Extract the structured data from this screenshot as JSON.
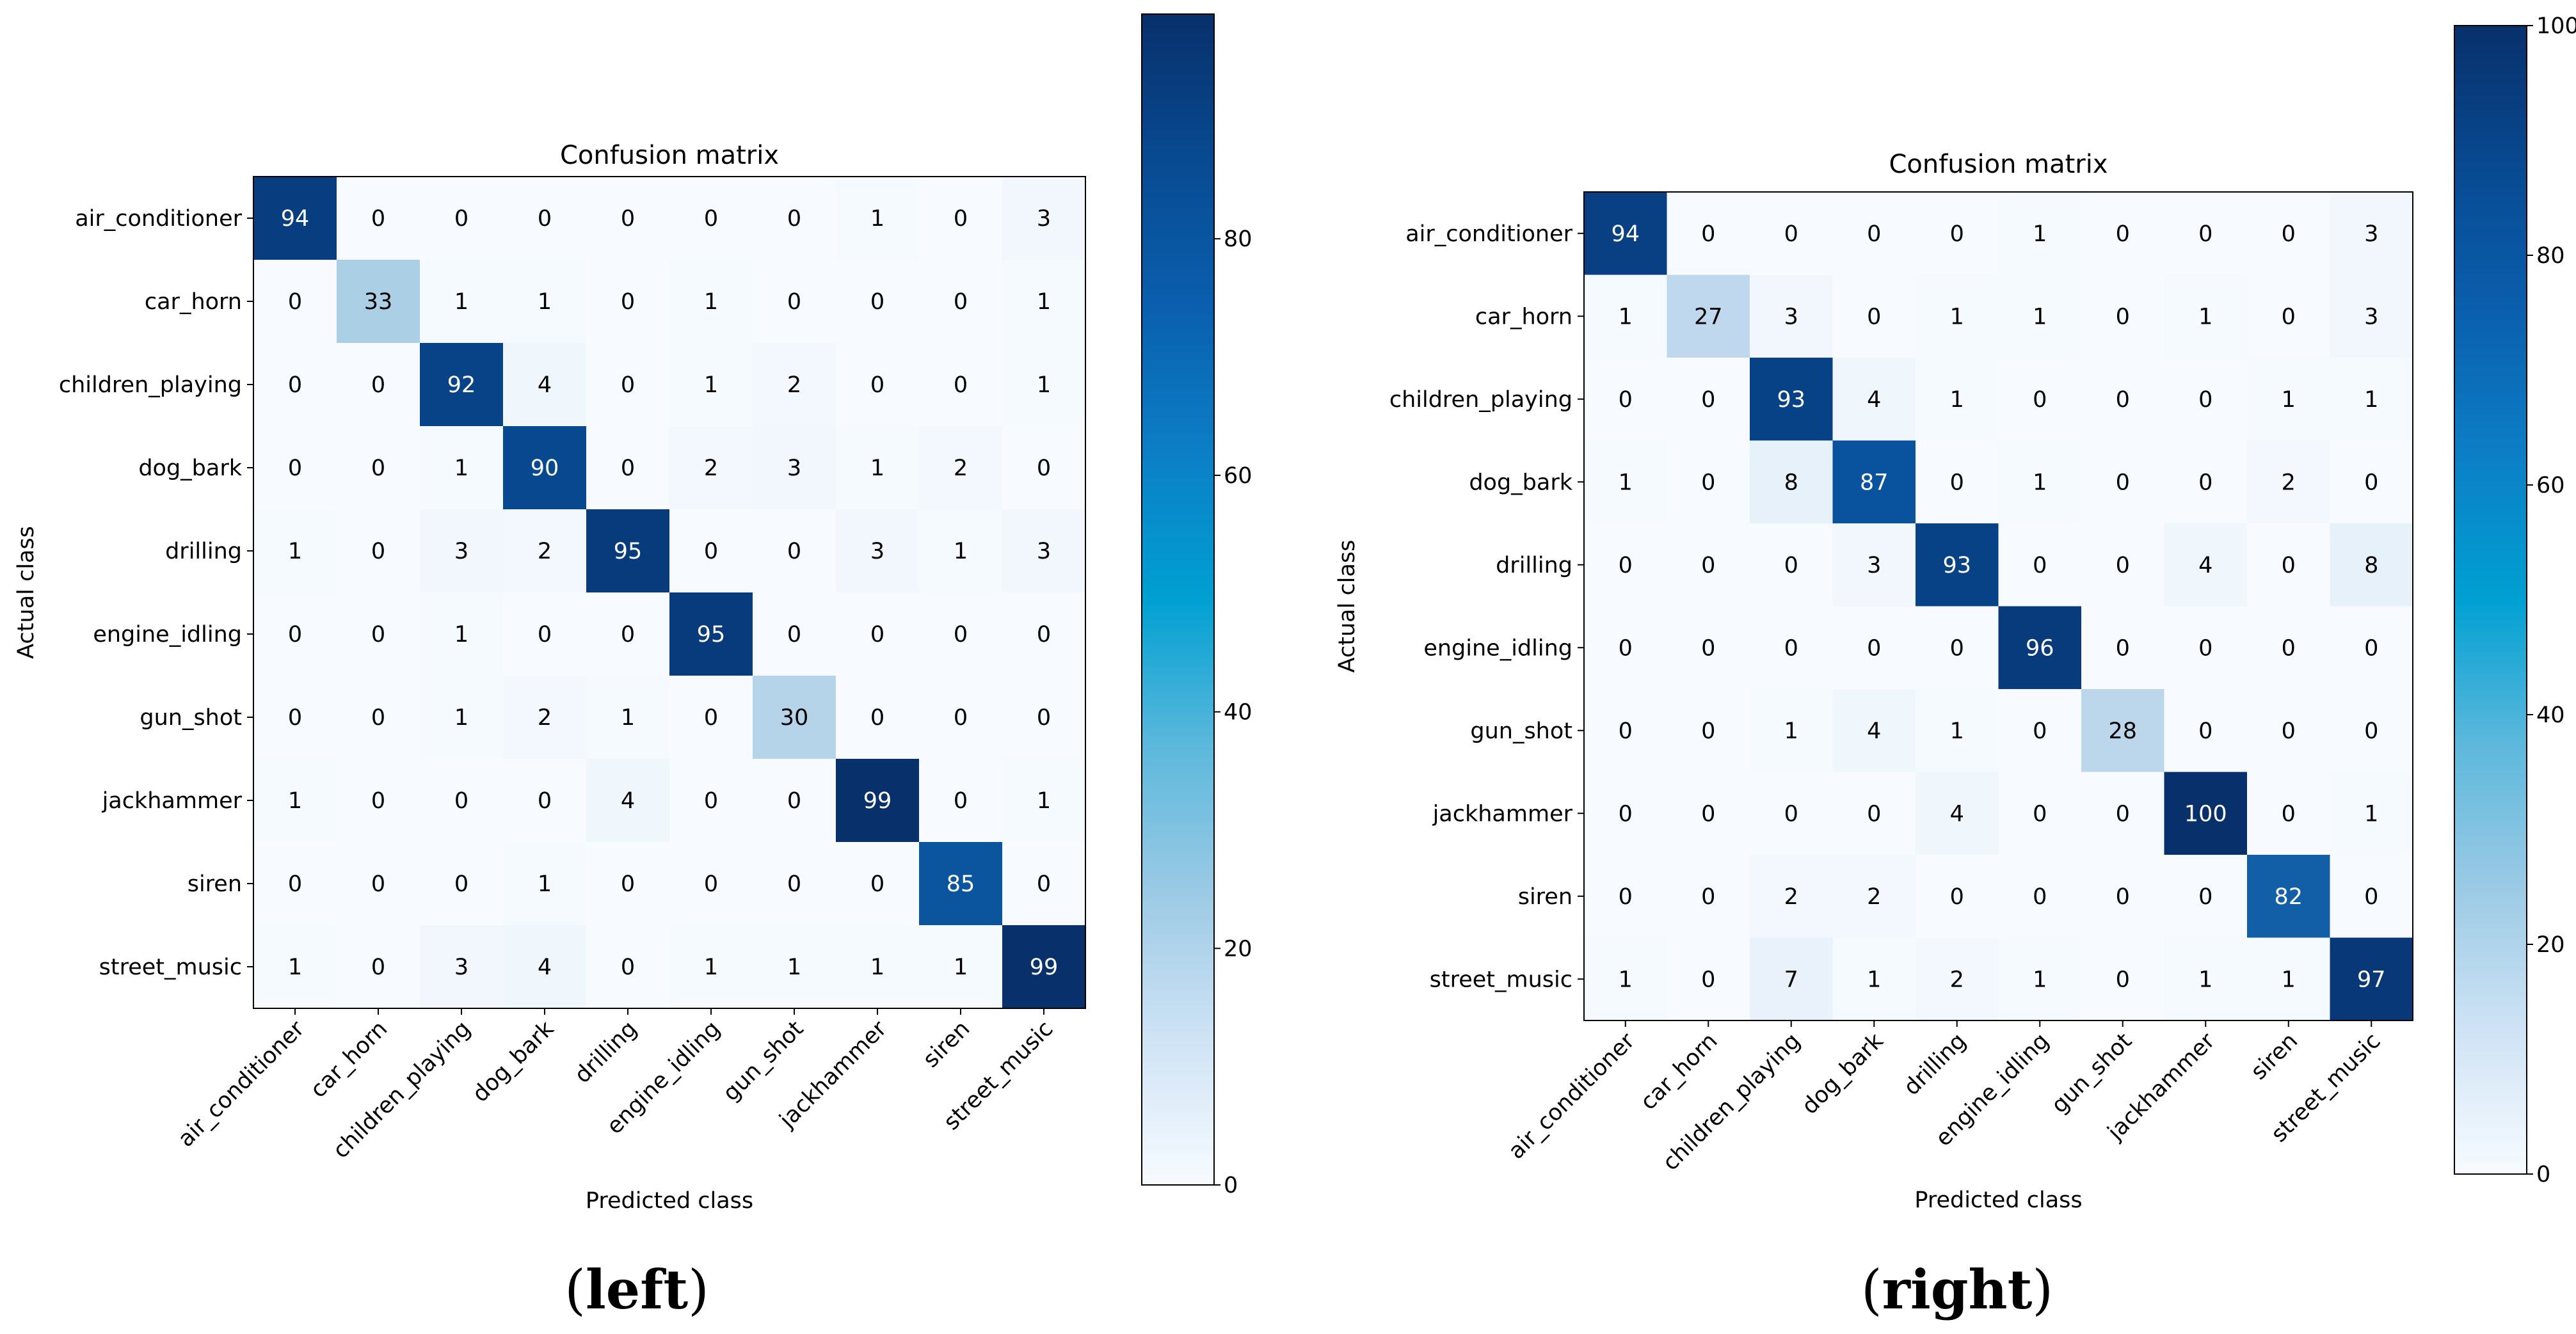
{
  "chart_data": [
    {
      "type": "heatmap",
      "title": "Confusion matrix",
      "xlabel": "Predicted class",
      "ylabel": "Actual class",
      "x_categories": [
        "air_conditioner",
        "car_horn",
        "children_playing",
        "dog_bark",
        "drilling",
        "engine_idling",
        "gun_shot",
        "jackhammer",
        "siren",
        "street_music"
      ],
      "y_categories": [
        "air_conditioner",
        "car_horn",
        "children_playing",
        "dog_bark",
        "drilling",
        "engine_idling",
        "gun_shot",
        "jackhammer",
        "siren",
        "street_music"
      ],
      "values": [
        [
          94,
          0,
          0,
          0,
          0,
          0,
          0,
          1,
          0,
          3
        ],
        [
          0,
          33,
          1,
          1,
          0,
          1,
          0,
          0,
          0,
          1
        ],
        [
          0,
          0,
          92,
          4,
          0,
          1,
          2,
          0,
          0,
          1
        ],
        [
          0,
          0,
          1,
          90,
          0,
          2,
          3,
          1,
          2,
          0
        ],
        [
          1,
          0,
          3,
          2,
          95,
          0,
          0,
          3,
          1,
          3
        ],
        [
          0,
          0,
          1,
          0,
          0,
          95,
          0,
          0,
          0,
          0
        ],
        [
          0,
          0,
          1,
          2,
          1,
          0,
          30,
          0,
          0,
          0
        ],
        [
          1,
          0,
          0,
          0,
          4,
          0,
          0,
          99,
          0,
          1
        ],
        [
          0,
          0,
          0,
          1,
          0,
          0,
          0,
          0,
          85,
          0
        ],
        [
          1,
          0,
          3,
          4,
          0,
          1,
          1,
          1,
          1,
          99
        ]
      ],
      "colorbar": {
        "min": 0,
        "max": 99,
        "ticks": [
          0,
          20,
          40,
          60,
          80
        ]
      },
      "caption": {
        "open": "(",
        "bold": "left",
        "close": ")"
      }
    },
    {
      "type": "heatmap",
      "title": "Confusion matrix",
      "xlabel": "Predicted class",
      "ylabel": "Actual class",
      "x_categories": [
        "air_conditioner",
        "car_horn",
        "children_playing",
        "dog_bark",
        "drilling",
        "engine_idling",
        "gun_shot",
        "jackhammer",
        "siren",
        "street_music"
      ],
      "y_categories": [
        "air_conditioner",
        "car_horn",
        "children_playing",
        "dog_bark",
        "drilling",
        "engine_idling",
        "gun_shot",
        "jackhammer",
        "siren",
        "street_music"
      ],
      "values": [
        [
          94,
          0,
          0,
          0,
          0,
          1,
          0,
          0,
          0,
          3
        ],
        [
          1,
          27,
          3,
          0,
          1,
          1,
          0,
          1,
          0,
          3
        ],
        [
          0,
          0,
          93,
          4,
          1,
          0,
          0,
          0,
          1,
          1
        ],
        [
          1,
          0,
          8,
          87,
          0,
          1,
          0,
          0,
          2,
          0
        ],
        [
          0,
          0,
          0,
          3,
          93,
          0,
          0,
          4,
          0,
          8
        ],
        [
          0,
          0,
          0,
          0,
          0,
          96,
          0,
          0,
          0,
          0
        ],
        [
          0,
          0,
          1,
          4,
          1,
          0,
          28,
          0,
          0,
          0
        ],
        [
          0,
          0,
          0,
          0,
          4,
          0,
          0,
          100,
          0,
          1
        ],
        [
          0,
          0,
          2,
          2,
          0,
          0,
          0,
          0,
          82,
          0
        ],
        [
          1,
          0,
          7,
          1,
          2,
          1,
          0,
          1,
          1,
          97
        ]
      ],
      "colorbar": {
        "min": 0,
        "max": 100,
        "ticks": [
          0,
          20,
          40,
          60,
          80,
          100
        ]
      },
      "caption": {
        "open": "(",
        "bold": "right",
        "close": ")"
      }
    }
  ],
  "colors": {
    "blues": [
      "#f7fbff",
      "#deebf7",
      "#c6dbef",
      "#9ecae1",
      "#6baed6",
      "#4292c6",
      "#2171b5",
      "#08519c",
      "#08306b"
    ],
    "colorbar_bar": [
      "#f7fbff",
      "#cfe3f5",
      "#9bcae5",
      "#5cb8dc",
      "#00a0d2",
      "#0c7fc6",
      "#0a5fae",
      "#084a92",
      "#08306b"
    ],
    "text_dark": "#000000",
    "text_light": "#ffffff"
  }
}
